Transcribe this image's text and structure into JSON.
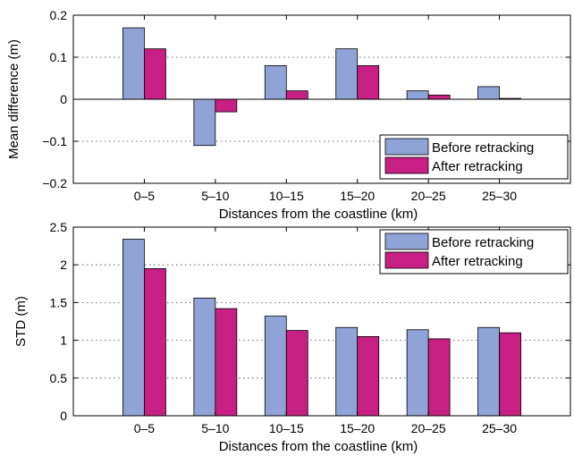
{
  "chart_data": [
    {
      "type": "bar",
      "categories": [
        "0–5",
        "5–10",
        "10–15",
        "15–20",
        "20–25",
        "25–30"
      ],
      "series": [
        {
          "name": "Before retracking",
          "color": "#8fa3d6",
          "values": [
            0.17,
            -0.11,
            0.08,
            0.12,
            0.02,
            0.03
          ]
        },
        {
          "name": "After retracking",
          "color": "#c71f83",
          "values": [
            0.12,
            -0.03,
            0.02,
            0.08,
            0.01,
            0.002
          ]
        }
      ],
      "xlabel": "Distances from the coastline (km)",
      "ylabel": "Mean difference (m)",
      "ylim": [
        -0.2,
        0.2
      ],
      "yticks": [
        -0.2,
        -0.1,
        0,
        0.1,
        0.2
      ],
      "ytick_labels": [
        "−0.2",
        "−0.1",
        "0",
        "0.1",
        "0.2"
      ],
      "grid": "horizontal dotted",
      "legend_position": "bottom-right"
    },
    {
      "type": "bar",
      "categories": [
        "0–5",
        "5–10",
        "10–15",
        "15–20",
        "20–25",
        "25–30"
      ],
      "series": [
        {
          "name": "Before retracking",
          "color": "#8fa3d6",
          "values": [
            2.34,
            1.56,
            1.32,
            1.17,
            1.14,
            1.17
          ]
        },
        {
          "name": "After retracking",
          "color": "#c71f83",
          "values": [
            1.95,
            1.42,
            1.13,
            1.05,
            1.02,
            1.1
          ]
        }
      ],
      "xlabel": "Distances from the coastline (km)",
      "ylabel": "STD (m)",
      "ylim": [
        0,
        2.5
      ],
      "yticks": [
        0,
        0.5,
        1,
        1.5,
        2,
        2.5
      ],
      "ytick_labels": [
        "0",
        "0.5",
        "1",
        "1.5",
        "2",
        "2.5"
      ],
      "grid": "horizontal dotted",
      "legend_position": "top-right"
    }
  ]
}
